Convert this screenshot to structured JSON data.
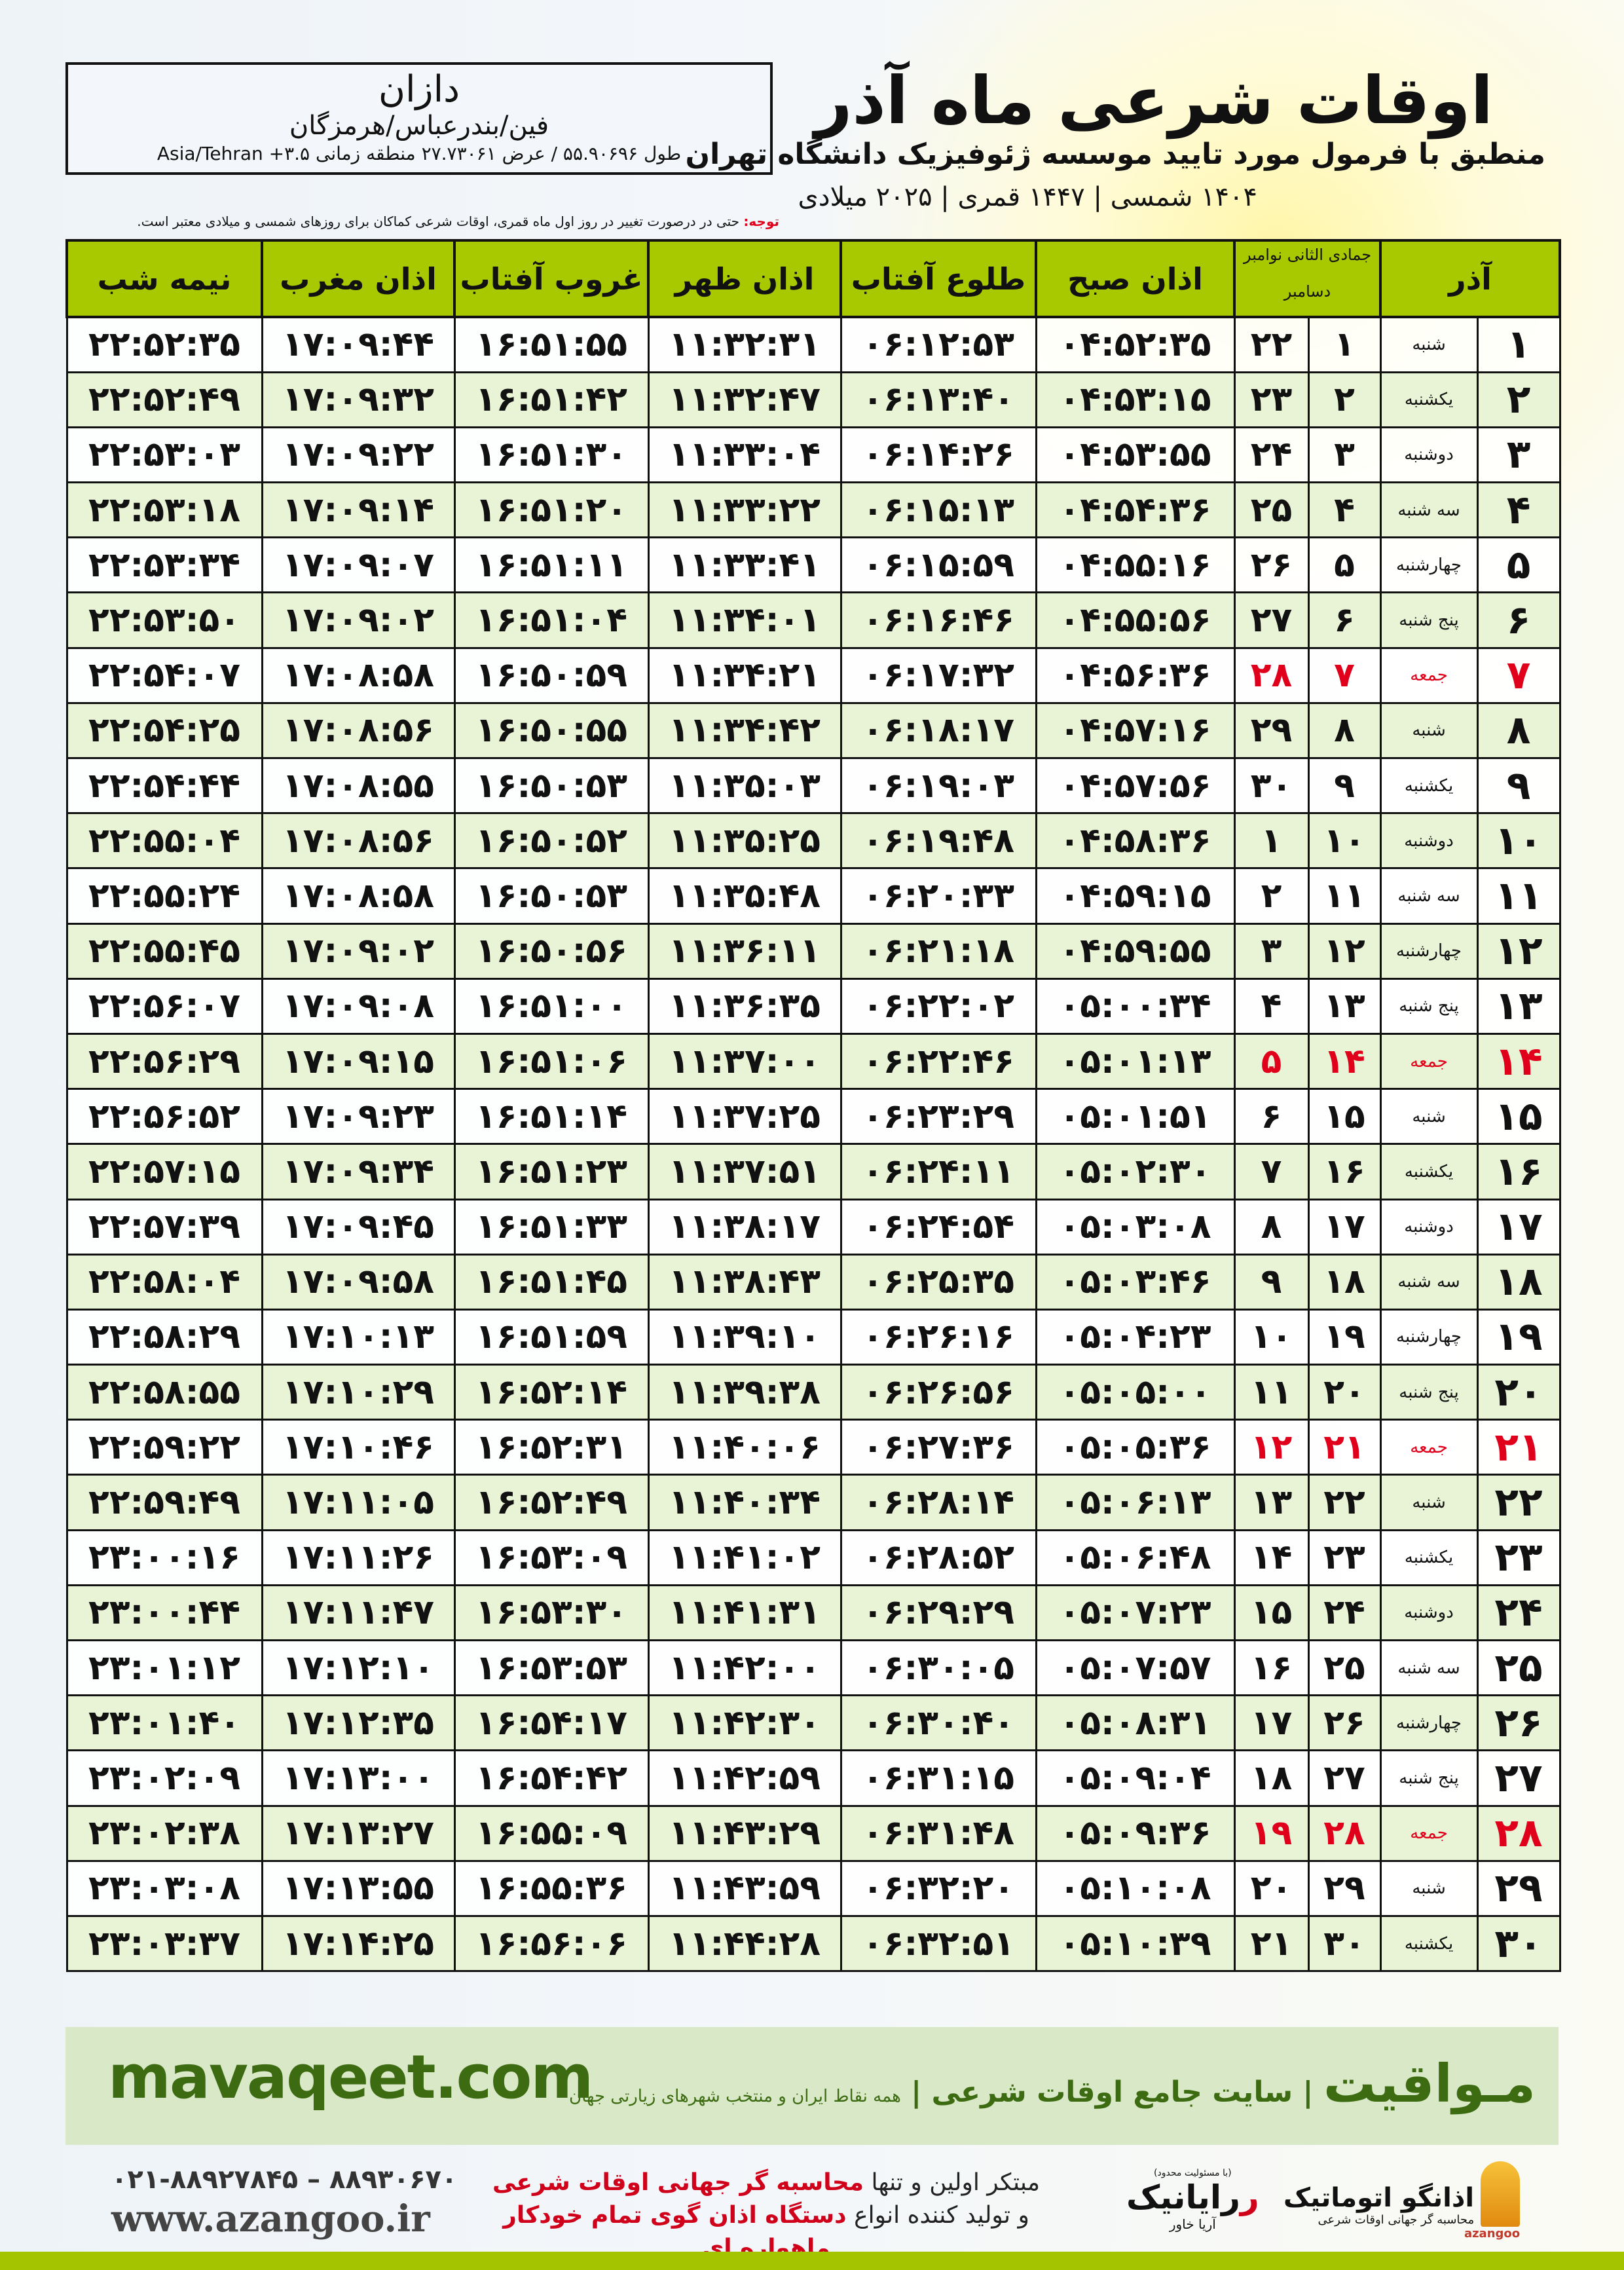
{
  "location": {
    "name": "دازان",
    "region": "فین/بندرعباس/هرمزگان",
    "coords": "طول ۵۵.۹۰۶۹۶ / عرض ۲۷.۷۳۰۶۱ منطقه زمانی ۳.۵+ Asia/Tehran"
  },
  "title": "اوقات شرعی ماه آذر",
  "subtitle": "منطبق با فرمول مورد تایید موسسه ژئوفیزیک دانشگاه تهران",
  "dateline": "۱۴۰۴ شمسی | ۱۴۴۷ قمری | ۲۰۲۵ میلادی",
  "note": {
    "label": "توجه:",
    "text": " حتی در درصورت تغییر در روز اول ماه قمری، اوقات شرعی کماکان برای روزهای شمسی و میلادی معتبر است."
  },
  "colors": {
    "header": "#a8c800",
    "alt_row": "#e9f4d6",
    "friday": "#e0001b",
    "footer": "#d9e9c8",
    "brand_green": "#3d6b12"
  },
  "table": {
    "headers": {
      "month": "آذر",
      "hijri": "جمادی الثانی",
      "greg_top": "نوامبر",
      "greg_bottom": "دسامبر",
      "fajr": "اذان صبح",
      "sunrise": "طلوع آفتاب",
      "dhuhr": "اذان ظهر",
      "sunset": "غروب آفتاب",
      "maghrib": "اذان مغرب",
      "midnight": "نیمه شب"
    },
    "rows": [
      [
        "۱",
        "شنبه",
        "۱",
        "۲۲",
        "۰۴:۵۲:۳۵",
        "۰۶:۱۲:۵۳",
        "۱۱:۳۲:۳۱",
        "۱۶:۵۱:۵۵",
        "۱۷:۰۹:۴۴",
        "۲۲:۵۲:۳۵"
      ],
      [
        "۲",
        "یکشنبه",
        "۲",
        "۲۳",
        "۰۴:۵۳:۱۵",
        "۰۶:۱۳:۴۰",
        "۱۱:۳۲:۴۷",
        "۱۶:۵۱:۴۲",
        "۱۷:۰۹:۳۲",
        "۲۲:۵۲:۴۹"
      ],
      [
        "۳",
        "دوشنبه",
        "۳",
        "۲۴",
        "۰۴:۵۳:۵۵",
        "۰۶:۱۴:۲۶",
        "۱۱:۳۳:۰۴",
        "۱۶:۵۱:۳۰",
        "۱۷:۰۹:۲۲",
        "۲۲:۵۳:۰۳"
      ],
      [
        "۴",
        "سه شنبه",
        "۴",
        "۲۵",
        "۰۴:۵۴:۳۶",
        "۰۶:۱۵:۱۳",
        "۱۱:۳۳:۲۲",
        "۱۶:۵۱:۲۰",
        "۱۷:۰۹:۱۴",
        "۲۲:۵۳:۱۸"
      ],
      [
        "۵",
        "چهارشنبه",
        "۵",
        "۲۶",
        "۰۴:۵۵:۱۶",
        "۰۶:۱۵:۵۹",
        "۱۱:۳۳:۴۱",
        "۱۶:۵۱:۱۱",
        "۱۷:۰۹:۰۷",
        "۲۲:۵۳:۳۴"
      ],
      [
        "۶",
        "پنج شنبه",
        "۶",
        "۲۷",
        "۰۴:۵۵:۵۶",
        "۰۶:۱۶:۴۶",
        "۱۱:۳۴:۰۱",
        "۱۶:۵۱:۰۴",
        "۱۷:۰۹:۰۲",
        "۲۲:۵۳:۵۰"
      ],
      [
        "۷",
        "جمعه",
        "۷",
        "۲۸",
        "۰۴:۵۶:۳۶",
        "۰۶:۱۷:۳۲",
        "۱۱:۳۴:۲۱",
        "۱۶:۵۰:۵۹",
        "۱۷:۰۸:۵۸",
        "۲۲:۵۴:۰۷"
      ],
      [
        "۸",
        "شنبه",
        "۸",
        "۲۹",
        "۰۴:۵۷:۱۶",
        "۰۶:۱۸:۱۷",
        "۱۱:۳۴:۴۲",
        "۱۶:۵۰:۵۵",
        "۱۷:۰۸:۵۶",
        "۲۲:۵۴:۲۵"
      ],
      [
        "۹",
        "یکشنبه",
        "۹",
        "۳۰",
        "۰۴:۵۷:۵۶",
        "۰۶:۱۹:۰۳",
        "۱۱:۳۵:۰۳",
        "۱۶:۵۰:۵۳",
        "۱۷:۰۸:۵۵",
        "۲۲:۵۴:۴۴"
      ],
      [
        "۱۰",
        "دوشنبه",
        "۱۰",
        "۱",
        "۰۴:۵۸:۳۶",
        "۰۶:۱۹:۴۸",
        "۱۱:۳۵:۲۵",
        "۱۶:۵۰:۵۲",
        "۱۷:۰۸:۵۶",
        "۲۲:۵۵:۰۴"
      ],
      [
        "۱۱",
        "سه شنبه",
        "۱۱",
        "۲",
        "۰۴:۵۹:۱۵",
        "۰۶:۲۰:۳۳",
        "۱۱:۳۵:۴۸",
        "۱۶:۵۰:۵۳",
        "۱۷:۰۸:۵۸",
        "۲۲:۵۵:۲۴"
      ],
      [
        "۱۲",
        "چهارشنبه",
        "۱۲",
        "۳",
        "۰۴:۵۹:۵۵",
        "۰۶:۲۱:۱۸",
        "۱۱:۳۶:۱۱",
        "۱۶:۵۰:۵۶",
        "۱۷:۰۹:۰۲",
        "۲۲:۵۵:۴۵"
      ],
      [
        "۱۳",
        "پنج شنبه",
        "۱۳",
        "۴",
        "۰۵:۰۰:۳۴",
        "۰۶:۲۲:۰۲",
        "۱۱:۳۶:۳۵",
        "۱۶:۵۱:۰۰",
        "۱۷:۰۹:۰۸",
        "۲۲:۵۶:۰۷"
      ],
      [
        "۱۴",
        "جمعه",
        "۱۴",
        "۵",
        "۰۵:۰۱:۱۳",
        "۰۶:۲۲:۴۶",
        "۱۱:۳۷:۰۰",
        "۱۶:۵۱:۰۶",
        "۱۷:۰۹:۱۵",
        "۲۲:۵۶:۲۹"
      ],
      [
        "۱۵",
        "شنبه",
        "۱۵",
        "۶",
        "۰۵:۰۱:۵۱",
        "۰۶:۲۳:۲۹",
        "۱۱:۳۷:۲۵",
        "۱۶:۵۱:۱۴",
        "۱۷:۰۹:۲۳",
        "۲۲:۵۶:۵۲"
      ],
      [
        "۱۶",
        "یکشنبه",
        "۱۶",
        "۷",
        "۰۵:۰۲:۳۰",
        "۰۶:۲۴:۱۱",
        "۱۱:۳۷:۵۱",
        "۱۶:۵۱:۲۳",
        "۱۷:۰۹:۳۴",
        "۲۲:۵۷:۱۵"
      ],
      [
        "۱۷",
        "دوشنبه",
        "۱۷",
        "۸",
        "۰۵:۰۳:۰۸",
        "۰۶:۲۴:۵۴",
        "۱۱:۳۸:۱۷",
        "۱۶:۵۱:۳۳",
        "۱۷:۰۹:۴۵",
        "۲۲:۵۷:۳۹"
      ],
      [
        "۱۸",
        "سه شنبه",
        "۱۸",
        "۹",
        "۰۵:۰۳:۴۶",
        "۰۶:۲۵:۳۵",
        "۱۱:۳۸:۴۳",
        "۱۶:۵۱:۴۵",
        "۱۷:۰۹:۵۸",
        "۲۲:۵۸:۰۴"
      ],
      [
        "۱۹",
        "چهارشنبه",
        "۱۹",
        "۱۰",
        "۰۵:۰۴:۲۳",
        "۰۶:۲۶:۱۶",
        "۱۱:۳۹:۱۰",
        "۱۶:۵۱:۵۹",
        "۱۷:۱۰:۱۳",
        "۲۲:۵۸:۲۹"
      ],
      [
        "۲۰",
        "پنج شنبه",
        "۲۰",
        "۱۱",
        "۰۵:۰۵:۰۰",
        "۰۶:۲۶:۵۶",
        "۱۱:۳۹:۳۸",
        "۱۶:۵۲:۱۴",
        "۱۷:۱۰:۲۹",
        "۲۲:۵۸:۵۵"
      ],
      [
        "۲۱",
        "جمعه",
        "۲۱",
        "۱۲",
        "۰۵:۰۵:۳۶",
        "۰۶:۲۷:۳۶",
        "۱۱:۴۰:۰۶",
        "۱۶:۵۲:۳۱",
        "۱۷:۱۰:۴۶",
        "۲۲:۵۹:۲۲"
      ],
      [
        "۲۲",
        "شنبه",
        "۲۲",
        "۱۳",
        "۰۵:۰۶:۱۳",
        "۰۶:۲۸:۱۴",
        "۱۱:۴۰:۳۴",
        "۱۶:۵۲:۴۹",
        "۱۷:۱۱:۰۵",
        "۲۲:۵۹:۴۹"
      ],
      [
        "۲۳",
        "یکشنبه",
        "۲۳",
        "۱۴",
        "۰۵:۰۶:۴۸",
        "۰۶:۲۸:۵۲",
        "۱۱:۴۱:۰۲",
        "۱۶:۵۳:۰۹",
        "۱۷:۱۱:۲۶",
        "۲۳:۰۰:۱۶"
      ],
      [
        "۲۴",
        "دوشنبه",
        "۲۴",
        "۱۵",
        "۰۵:۰۷:۲۳",
        "۰۶:۲۹:۲۹",
        "۱۱:۴۱:۳۱",
        "۱۶:۵۳:۳۰",
        "۱۷:۱۱:۴۷",
        "۲۳:۰۰:۴۴"
      ],
      [
        "۲۵",
        "سه شنبه",
        "۲۵",
        "۱۶",
        "۰۵:۰۷:۵۷",
        "۰۶:۳۰:۰۵",
        "۱۱:۴۲:۰۰",
        "۱۶:۵۳:۵۳",
        "۱۷:۱۲:۱۰",
        "۲۳:۰۱:۱۲"
      ],
      [
        "۲۶",
        "چهارشنبه",
        "۲۶",
        "۱۷",
        "۰۵:۰۸:۳۱",
        "۰۶:۳۰:۴۰",
        "۱۱:۴۲:۳۰",
        "۱۶:۵۴:۱۷",
        "۱۷:۱۲:۳۵",
        "۲۳:۰۱:۴۰"
      ],
      [
        "۲۷",
        "پنج شنبه",
        "۲۷",
        "۱۸",
        "۰۵:۰۹:۰۴",
        "۰۶:۳۱:۱۵",
        "۱۱:۴۲:۵۹",
        "۱۶:۵۴:۴۲",
        "۱۷:۱۳:۰۰",
        "۲۳:۰۲:۰۹"
      ],
      [
        "۲۸",
        "جمعه",
        "۲۸",
        "۱۹",
        "۰۵:۰۹:۳۶",
        "۰۶:۳۱:۴۸",
        "۱۱:۴۳:۲۹",
        "۱۶:۵۵:۰۹",
        "۱۷:۱۳:۲۷",
        "۲۳:۰۲:۳۸"
      ],
      [
        "۲۹",
        "شنبه",
        "۲۹",
        "۲۰",
        "۰۵:۱۰:۰۸",
        "۰۶:۳۲:۲۰",
        "۱۱:۴۳:۵۹",
        "۱۶:۵۵:۳۶",
        "۱۷:۱۳:۵۵",
        "۲۳:۰۳:۰۸"
      ],
      [
        "۳۰",
        "یکشنبه",
        "۳۰",
        "۲۱",
        "۰۵:۱۰:۳۹",
        "۰۶:۳۲:۵۱",
        "۱۱:۴۴:۲۸",
        "۱۶:۵۶:۰۶",
        "۱۷:۱۴:۲۵",
        "۲۳:۰۳:۳۷"
      ]
    ]
  },
  "footer": {
    "site": "mavaqeet.com",
    "brand": "مـواقیت",
    "tag_main": " | سایت جامع اوقات شرعی | ",
    "tag_sub": "همه نقاط ایران و منتخب شهرهای زیارتی جهان",
    "phones": "۰۲۱-۸۸۹۲۷۸۴۵ – ۸۸۹۳۰۶۷۰",
    "www": "www.azangoo.ir",
    "promo1a": "مبتکر اولین و تنها ",
    "promo1b": "محاسبه گر جهانی اوقات شرعی",
    "promo2a": "و تولید کننده انواع ",
    "promo2b": "دستگاه اذان گوی تمام خودکار ماهواره ای",
    "raya_small": "(با مسئولیت محدود)",
    "raya": "رایانیک",
    "raya_sub": "آریا خاور",
    "azangoo": "اذانگو اتوماتیک",
    "azangoo_sub": "محاسبه گر جهانی اوقات شرعی",
    "azangoo_en": "azangoo"
  }
}
